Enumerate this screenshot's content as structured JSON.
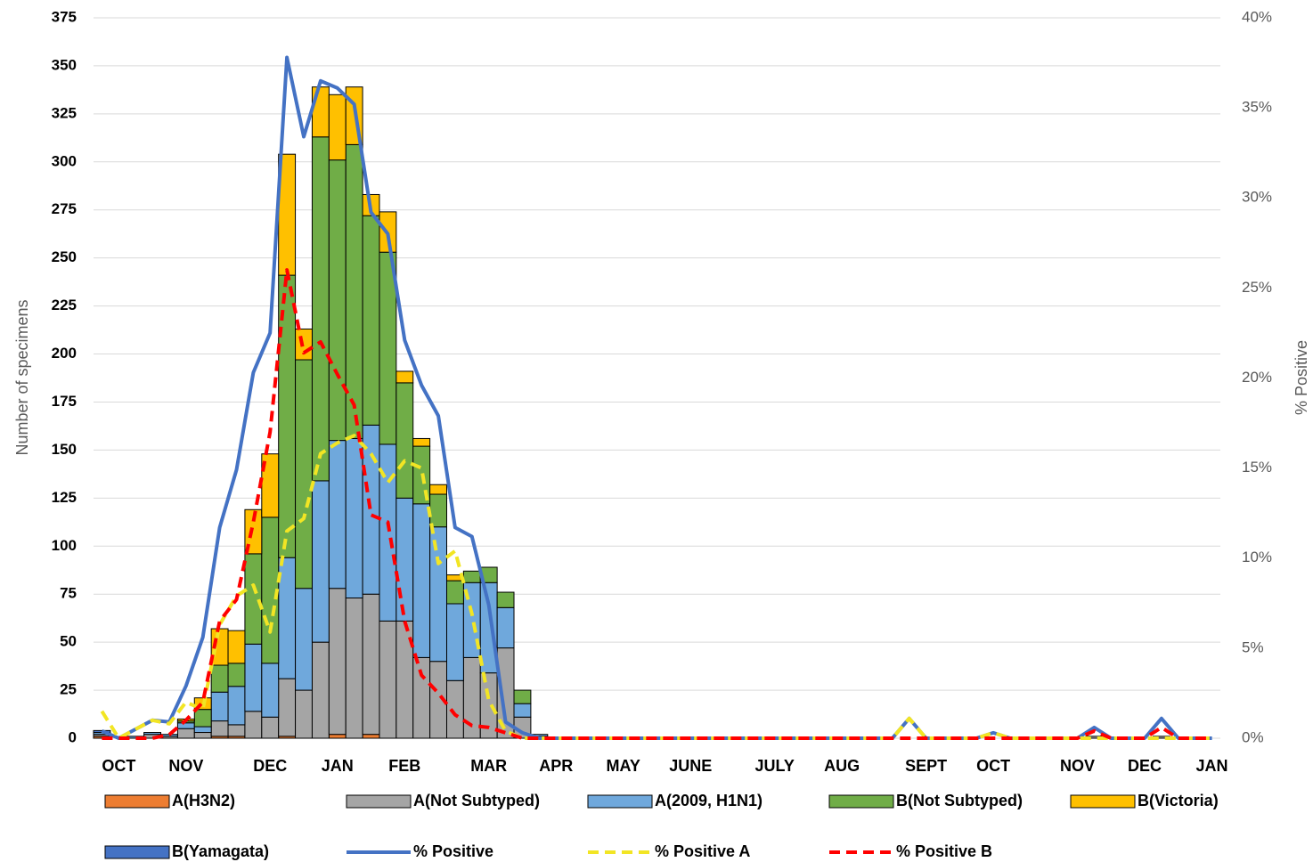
{
  "chart_data": {
    "type": "bar",
    "stacked": true,
    "y_label": "Number of specimens",
    "y2_label": "% Positive",
    "grid": true,
    "legend": "bottom",
    "categories": [
      null,
      "OCT",
      null,
      null,
      null,
      "NOV",
      null,
      null,
      null,
      null,
      "DEC",
      null,
      null,
      null,
      "JAN",
      null,
      null,
      null,
      "FEB",
      null,
      null,
      null,
      null,
      "MAR",
      null,
      null,
      null,
      "APR",
      null,
      null,
      null,
      "MAY",
      null,
      null,
      null,
      "JUNE",
      null,
      null,
      null,
      null,
      "JULY",
      null,
      null,
      null,
      "AUG",
      null,
      null,
      null,
      null,
      "SEPT",
      null,
      null,
      null,
      "OCT",
      null,
      null,
      null,
      null,
      "NOV",
      null,
      null,
      null,
      "DEC",
      null,
      null,
      null,
      "JAN"
    ],
    "ylim": [
      0,
      375
    ],
    "yticks": [
      0,
      25,
      50,
      75,
      100,
      125,
      150,
      175,
      200,
      225,
      250,
      275,
      300,
      325,
      350,
      375
    ],
    "y2lim": [
      0,
      40
    ],
    "y2ticks": [
      {
        "value": 0,
        "label": "0%"
      },
      {
        "value": 5,
        "label": "5%"
      },
      {
        "value": 10,
        "label": "10%"
      },
      {
        "value": 15,
        "label": "15%"
      },
      {
        "value": 20,
        "label": "20%"
      },
      {
        "value": 25,
        "label": "25%"
      },
      {
        "value": 30,
        "label": "30%"
      },
      {
        "value": 35,
        "label": "35%"
      },
      {
        "value": 40,
        "label": "40%"
      }
    ],
    "series": [
      {
        "name": "A(H3N2)",
        "type": "bar",
        "color": "#ed7d31",
        "values": [
          1,
          0,
          0,
          0,
          0,
          0,
          0,
          1,
          1,
          0,
          0,
          1,
          0,
          0,
          2,
          0,
          2,
          0,
          0,
          0,
          0,
          0,
          0,
          0,
          0,
          0,
          0,
          0,
          0,
          0,
          0,
          0,
          0,
          0,
          0,
          0,
          0,
          0,
          0,
          0,
          0,
          0,
          0,
          0,
          0,
          0,
          0,
          0,
          0,
          0,
          0,
          0,
          0,
          0,
          0,
          0,
          0,
          0,
          0,
          0,
          0,
          0,
          0,
          0,
          0,
          0,
          0
        ]
      },
      {
        "name": "A(Not  Subtyped)",
        "type": "bar",
        "color": "#a5a5a5",
        "values": [
          1,
          0,
          0,
          2,
          1,
          5,
          3,
          8,
          6,
          14,
          11,
          30,
          25,
          50,
          76,
          73,
          73,
          61,
          61,
          42,
          40,
          30,
          42,
          34,
          47,
          11,
          1,
          0,
          0,
          0,
          0,
          0,
          0,
          0,
          0,
          0,
          0,
          0,
          0,
          0,
          0,
          0,
          0,
          0,
          0,
          0,
          0,
          0,
          0,
          0,
          0,
          0,
          0,
          0,
          0,
          0,
          0,
          0,
          0,
          1,
          0,
          0,
          0,
          1,
          0,
          0,
          0
        ]
      },
      {
        "name": "A(2009, H1N1)",
        "type": "bar",
        "color": "#6fa8dc",
        "values": [
          1,
          0,
          1,
          1,
          1,
          3,
          3,
          15,
          20,
          35,
          28,
          63,
          53,
          84,
          77,
          83,
          88,
          92,
          64,
          80,
          70,
          40,
          39,
          47,
          21,
          7,
          1,
          0,
          0,
          0,
          0,
          0,
          0,
          0,
          0,
          0,
          0,
          0,
          0,
          0,
          0,
          0,
          0,
          0,
          0,
          0,
          0,
          0,
          0,
          0,
          0,
          0,
          0,
          0,
          0,
          0,
          0,
          0,
          0,
          0,
          0,
          0,
          0,
          0,
          0,
          0,
          0
        ]
      },
      {
        "name": "B(Not Subtyped)",
        "type": "bar",
        "color": "#70ad47",
        "values": [
          0,
          0,
          0,
          0,
          0,
          1,
          9,
          14,
          12,
          47,
          76,
          147,
          119,
          179,
          146,
          153,
          109,
          100,
          60,
          30,
          17,
          12,
          6,
          8,
          8,
          7,
          0,
          0,
          0,
          0,
          0,
          0,
          0,
          0,
          0,
          0,
          0,
          0,
          0,
          0,
          0,
          0,
          0,
          0,
          0,
          0,
          0,
          0,
          0,
          0,
          0,
          0,
          0,
          0,
          0,
          0,
          0,
          0,
          0,
          0,
          0,
          0,
          0,
          0,
          0,
          0,
          0
        ]
      },
      {
        "name": "B(Victoria)",
        "type": "bar",
        "color": "#ffc000",
        "values": [
          0,
          0,
          0,
          0,
          0,
          1,
          6,
          19,
          17,
          23,
          33,
          63,
          16,
          26,
          34,
          30,
          11,
          21,
          6,
          4,
          5,
          3,
          0,
          0,
          0,
          0,
          0,
          0,
          0,
          0,
          0,
          0,
          0,
          0,
          0,
          0,
          0,
          0,
          0,
          0,
          0,
          0,
          0,
          0,
          0,
          0,
          0,
          0,
          0,
          0,
          0,
          0,
          0,
          0,
          0,
          0,
          0,
          0,
          0,
          0,
          0,
          0,
          0,
          0,
          0,
          0,
          0
        ]
      },
      {
        "name": "B(Yamagata)",
        "type": "bar",
        "color": "#4472c4",
        "values": [
          1,
          0,
          0,
          0,
          0,
          0,
          0,
          0,
          0,
          0,
          0,
          0,
          0,
          0,
          0,
          0,
          0,
          0,
          0,
          0,
          0,
          0,
          0,
          0,
          0,
          0,
          0,
          0,
          0,
          0,
          0,
          0,
          0,
          0,
          0,
          0,
          0,
          0,
          0,
          0,
          0,
          0,
          0,
          0,
          0,
          0,
          0,
          0,
          0,
          0,
          0,
          0,
          0,
          0,
          0,
          0,
          0,
          0,
          0,
          0,
          0,
          0,
          0,
          0,
          0,
          0,
          0
        ]
      },
      {
        "name": "% Positive",
        "type": "line",
        "axis": "y2",
        "color": "#4472c4",
        "style": "solid",
        "values": [
          0.4,
          0,
          0.5,
          1.0,
          0.9,
          2.9,
          5.6,
          11.7,
          14.9,
          20.3,
          22.5,
          37.8,
          33.4,
          36.5,
          36.1,
          35.2,
          29.2,
          28.0,
          22.1,
          19.6,
          17.9,
          11.7,
          11.2,
          7.4,
          0.9,
          0.3,
          0,
          0,
          0,
          0,
          0,
          0,
          0,
          0,
          0,
          0,
          0,
          0,
          0,
          0,
          0,
          0,
          0,
          0,
          0,
          0,
          0,
          0,
          1.1,
          0,
          0,
          0,
          0,
          0.3,
          0,
          0,
          0,
          0,
          0,
          0.6,
          0,
          0,
          0,
          1.1,
          0,
          0,
          0
        ]
      },
      {
        "name": "% Positive A",
        "type": "line",
        "axis": "y2",
        "color": "#f2e524",
        "style": "dashed",
        "values": [
          1.5,
          0,
          0.5,
          1.0,
          0.8,
          2.0,
          1.6,
          6.3,
          7.9,
          8.5,
          5.9,
          11.5,
          12.2,
          15.8,
          16.4,
          16.8,
          15.8,
          14.2,
          15.4,
          15.0,
          9.7,
          10.4,
          6.9,
          2.1,
          0.4,
          0,
          0,
          0,
          0,
          0,
          0,
          0,
          0,
          0,
          0,
          0,
          0,
          0,
          0,
          0,
          0,
          0,
          0,
          0,
          0,
          0,
          0,
          0,
          1.1,
          0,
          0,
          0,
          0,
          0.3,
          0,
          0,
          0,
          0,
          0,
          0,
          0,
          0,
          0,
          0,
          0,
          0,
          0
        ]
      },
      {
        "name": "% Positive B",
        "type": "line",
        "axis": "y2",
        "color": "#ff0000",
        "style": "dashed",
        "values": [
          0,
          0,
          0,
          0,
          0.2,
          1.0,
          2.0,
          6.5,
          7.7,
          12.0,
          17.0,
          26.0,
          21.4,
          22.0,
          20.2,
          18.5,
          12.4,
          12.0,
          6.5,
          3.5,
          2.5,
          1.3,
          0.7,
          0.6,
          0.3,
          0,
          0,
          0,
          0,
          0,
          0,
          0,
          0,
          0,
          0,
          0,
          0,
          0,
          0,
          0,
          0,
          0,
          0,
          0,
          0,
          0,
          0,
          0,
          0,
          0,
          0,
          0,
          0,
          0,
          0,
          0,
          0,
          0,
          0,
          0.4,
          0,
          0,
          0,
          0.6,
          0,
          0,
          0
        ]
      }
    ]
  }
}
